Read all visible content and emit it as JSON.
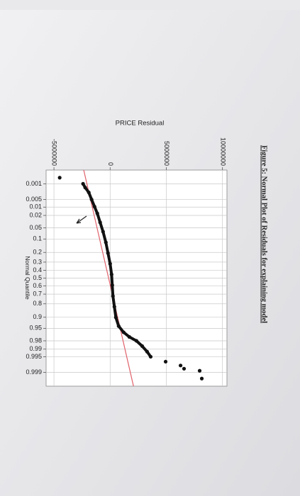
{
  "chart_data": {
    "type": "scatter",
    "title": "Figure 5: Normal Plot of Residuals for explaining model",
    "xlabel": "PRICE Residual",
    "ylabel": "Normal Quantile",
    "yscale": "normal-probability",
    "grid": true,
    "color": "#111111",
    "fit_color": "#e0606a",
    "x": [
      -4490000,
      -2410000,
      -2220000,
      -1900000,
      -1650000,
      -1390000,
      -1140000,
      -890000,
      -630000,
      -380000,
      -190000,
      0,
      130000,
      190000,
      250000,
      380000,
      510000,
      760000,
      1200000,
      1710000,
      2340000,
      2850000,
      3290000,
      3610000,
      4940000,
      6270000,
      6580000,
      7970000,
      8160000
    ],
    "values": [
      0.0005,
      0.001,
      0.0015,
      0.0025,
      0.005,
      0.0096,
      0.017,
      0.034,
      0.064,
      0.121,
      0.206,
      0.319,
      0.452,
      0.591,
      0.722,
      0.826,
      0.901,
      0.942,
      0.962,
      0.973,
      0.98,
      0.987,
      0.992,
      0.995,
      0.9969,
      0.9979,
      0.9985,
      0.9988,
      0.9995
    ],
    "fit_line": {
      "x": [
        -2350000,
        2080000
      ],
      "y": [
        0.0002,
        0.9998
      ]
    },
    "xlim": [
      -5700000,
      10400000
    ],
    "xticks": [
      -5000000,
      0,
      5000000,
      10000000
    ],
    "ylim": [
      0.0002,
      0.9998
    ],
    "yticks": [
      0.001,
      0.005,
      0.01,
      0.02,
      0.05,
      0.1,
      0.2,
      0.3,
      0.4,
      0.5,
      0.6,
      0.7,
      0.8,
      0.9,
      0.95,
      0.98,
      0.99,
      0.995,
      0.999
    ]
  }
}
